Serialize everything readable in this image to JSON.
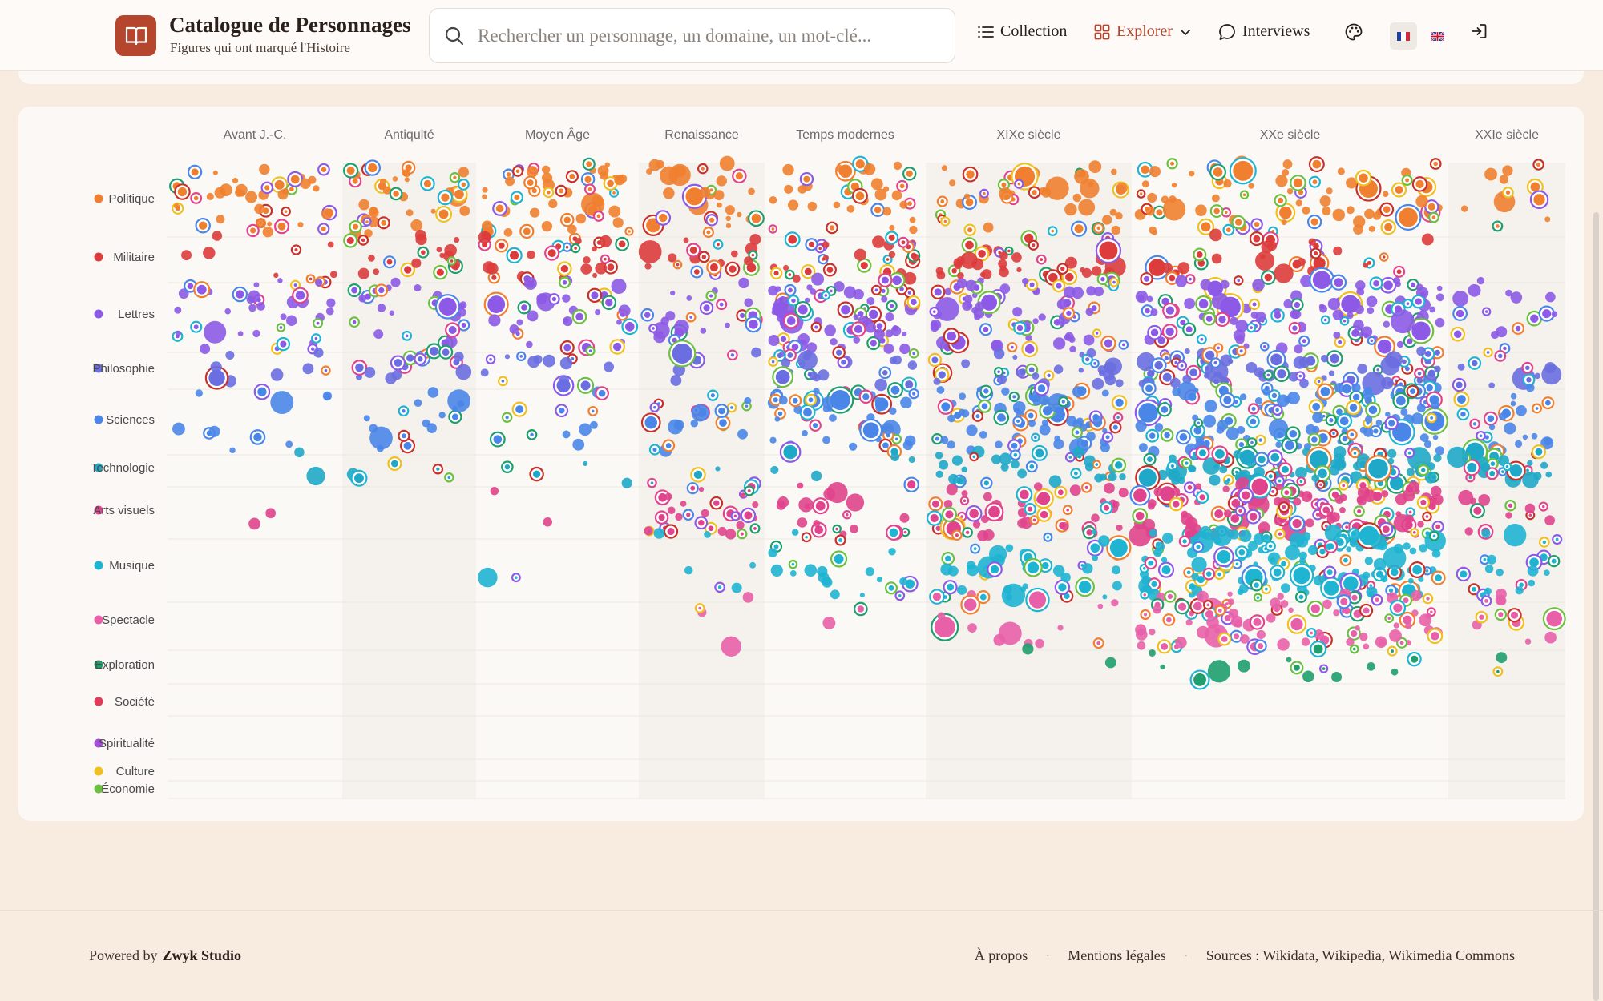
{
  "header": {
    "title": "Catalogue de Personnages",
    "subtitle": "Figures qui ont marqué l'Histoire",
    "logo_icon": "open-book-icon",
    "search_placeholder": "Rechercher un personnage, un domaine, un mot-clé...",
    "nav": {
      "collection": "Collection",
      "explorer": "Explorer",
      "interviews": "Interviews"
    },
    "languages": [
      "fr",
      "en"
    ],
    "selected_language": "fr",
    "accent_color": "#b5452c"
  },
  "chart_data": {
    "type": "scatter",
    "eras": [
      "Avant J.-C.",
      "Antiquité",
      "Moyen Âge",
      "Renaissance",
      "Temps modernes",
      "XIXe siècle",
      "XXe siècle",
      "XXIe siècle"
    ],
    "categories": [
      {
        "name": "Politique",
        "color": "#f08030"
      },
      {
        "name": "Militaire",
        "color": "#dc3c3c"
      },
      {
        "name": "Lettres",
        "color": "#8c5ae6"
      },
      {
        "name": "Philosophie",
        "color": "#6a6ee0"
      },
      {
        "name": "Sciences",
        "color": "#4a86e8"
      },
      {
        "name": "Technologie",
        "color": "#1fa8c8"
      },
      {
        "name": "Arts visuels",
        "color": "#e0448c"
      },
      {
        "name": "Musique",
        "color": "#1fb4d2"
      },
      {
        "name": "Spectacle",
        "color": "#e860a8"
      },
      {
        "name": "Exploration",
        "color": "#1f9e6e"
      },
      {
        "name": "Société",
        "color": "#e03c5a"
      },
      {
        "name": "Spiritualité",
        "color": "#a450d8"
      },
      {
        "name": "Culture",
        "color": "#f0c020"
      },
      {
        "name": "Économie",
        "color": "#6cc040"
      }
    ],
    "density": [
      [
        22,
        20,
        26,
        16,
        18,
        24,
        44,
        6
      ],
      [
        4,
        10,
        14,
        10,
        16,
        20,
        16,
        0
      ],
      [
        20,
        12,
        18,
        12,
        38,
        40,
        60,
        8
      ],
      [
        4,
        8,
        8,
        3,
        14,
        16,
        40,
        6
      ],
      [
        6,
        8,
        6,
        10,
        28,
        40,
        70,
        12
      ],
      [
        1,
        3,
        2,
        2,
        3,
        18,
        48,
        14
      ],
      [
        1,
        0,
        1,
        16,
        10,
        28,
        70,
        6
      ],
      [
        0,
        0,
        1,
        3,
        12,
        24,
        80,
        10
      ],
      [
        0,
        0,
        0,
        2,
        1,
        8,
        50,
        6
      ],
      [
        0,
        0,
        0,
        0,
        0,
        1,
        8,
        1
      ],
      [
        0,
        0,
        0,
        0,
        0,
        0,
        0,
        0
      ],
      [
        0,
        0,
        0,
        0,
        0,
        0,
        0,
        0
      ],
      [
        0,
        0,
        0,
        0,
        0,
        0,
        0,
        0
      ],
      [
        0,
        0,
        0,
        0,
        0,
        0,
        0,
        0
      ]
    ],
    "ring_colors": [
      "#c8302a",
      "#f08030",
      "#8c5ae6",
      "#4a86e8",
      "#1fb4d2",
      "#e0448c",
      "#f0c020",
      "#6cc040",
      "#1f9e6e"
    ],
    "grid": true,
    "legend": "left"
  },
  "footer": {
    "powered_by": "Powered by",
    "studio": "Zwyk Studio",
    "links": [
      "À propos",
      "Mentions légales",
      "Sources : Wikidata, Wikipedia, Wikimedia Commons"
    ]
  }
}
